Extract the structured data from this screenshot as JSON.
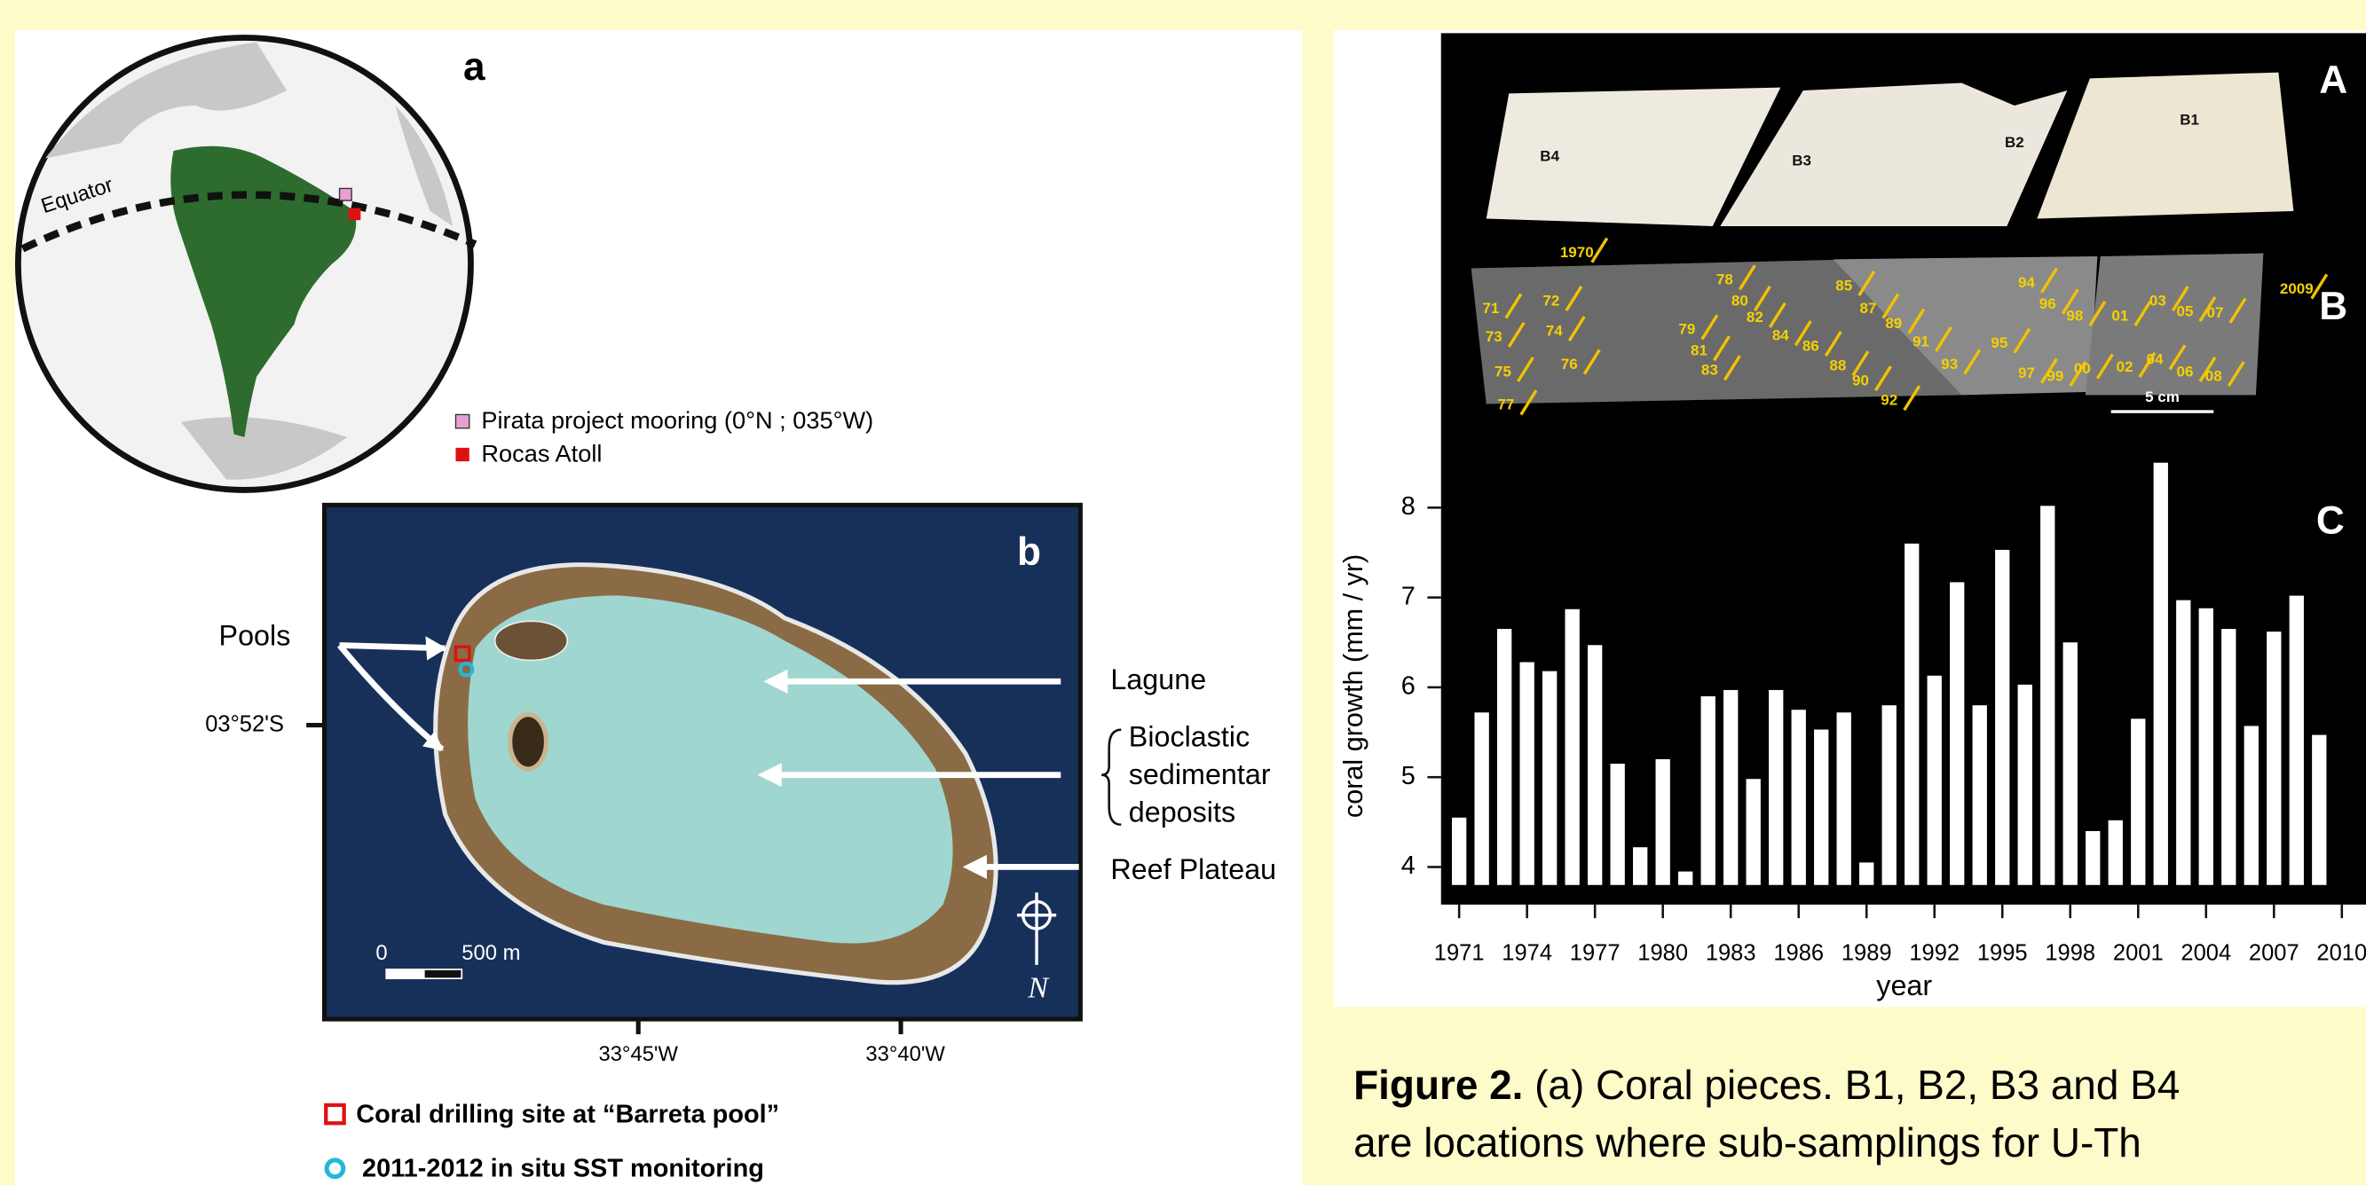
{
  "panel_a": {
    "label": "a",
    "equator": "Equator",
    "legend": [
      "Pirata project mooring (0°N ; 035°W)",
      "Rocas Atoll"
    ]
  },
  "panel_b": {
    "label": "b",
    "pools": "Pools",
    "latitude": "03°52'S",
    "lagune": "Lagune",
    "bioclastic": [
      "Bioclastic",
      "sedimentar",
      "deposits"
    ],
    "reef": "Reef Plateau",
    "scale_start": "0",
    "scale_end": "500 m",
    "north": "N",
    "longitudes": [
      "33°45'W",
      "33°40'W"
    ],
    "legend": [
      "Coral drilling site at “Barreta pool”",
      "2011-2012 in situ SST monitoring"
    ]
  },
  "coral_images": {
    "label_a": "A",
    "label_b": "B",
    "pieces": [
      "B4",
      "B3",
      "B2",
      "B1"
    ],
    "band_years": [
      "1970",
      "71",
      "72",
      "73",
      "74",
      "75",
      "76",
      "77",
      "78",
      "79",
      "80",
      "81",
      "82",
      "83",
      "84",
      "85",
      "86",
      "87",
      "88",
      "89",
      "90",
      "91",
      "92",
      "93",
      "94",
      "95",
      "96",
      "97",
      "98",
      "99",
      "00",
      "01",
      "02",
      "03",
      "04",
      "05",
      "06",
      "07",
      "08",
      "2009"
    ],
    "scale": "5 cm"
  },
  "chart_data": {
    "type": "bar",
    "panel_label": "C",
    "xlabel": "year",
    "ylabel": "coral growth (mm / yr)",
    "color": "#ffffff",
    "x": [
      1971,
      1972,
      1973,
      1974,
      1975,
      1976,
      1977,
      1978,
      1979,
      1980,
      1981,
      1982,
      1983,
      1984,
      1985,
      1986,
      1987,
      1988,
      1989,
      1990,
      1991,
      1992,
      1993,
      1994,
      1995,
      1996,
      1997,
      1998,
      1999,
      2000,
      2001,
      2002,
      2003,
      2004,
      2005,
      2006,
      2007,
      2008,
      2009
    ],
    "values": [
      4.55,
      5.72,
      6.65,
      6.28,
      6.18,
      6.87,
      6.47,
      5.15,
      4.22,
      5.2,
      3.95,
      5.9,
      5.97,
      4.98,
      5.97,
      5.75,
      5.53,
      5.72,
      4.05,
      5.8,
      7.6,
      6.13,
      7.17,
      5.8,
      7.53,
      6.03,
      8.02,
      6.5,
      4.4,
      4.52,
      5.65,
      8.5,
      6.97,
      6.88,
      6.65,
      5.57,
      6.62,
      7.02,
      5.47
    ],
    "xlim": [
      1970.2,
      2010.2
    ],
    "ylim": [
      3.8,
      8.7
    ],
    "xticks": [
      1971,
      1974,
      1977,
      1980,
      1983,
      1986,
      1989,
      1992,
      1995,
      1998,
      2001,
      2004,
      2007,
      2010
    ],
    "yticks": [
      4,
      5,
      6,
      7,
      8
    ]
  },
  "caption": {
    "lead": "Figure 2.",
    "lines": [
      " (a) Coral pieces. B1, B2, B3 and B4",
      "are locations where sub-samplings for U-Th"
    ]
  }
}
